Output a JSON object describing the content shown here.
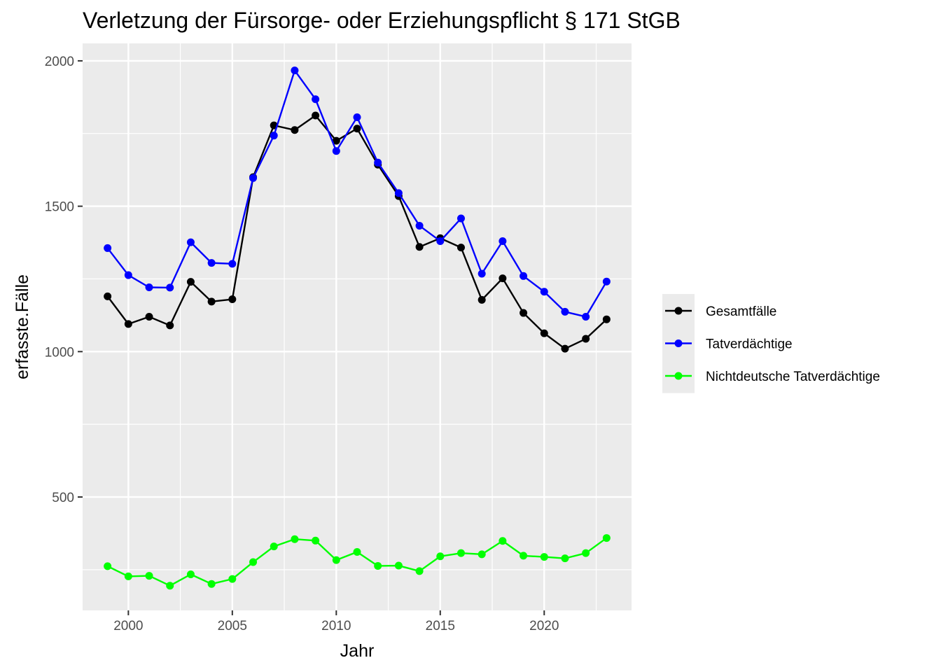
{
  "chart_data": {
    "type": "line",
    "title": "Verletzung der Fürsorge- oder Erziehungspflicht § 171 StGB",
    "xlabel": "Jahr",
    "ylabel": "erfasste.Fälle",
    "x": [
      1999,
      2000,
      2001,
      2002,
      2003,
      2004,
      2005,
      2006,
      2007,
      2008,
      2009,
      2010,
      2011,
      2012,
      2013,
      2014,
      2015,
      2016,
      2017,
      2018,
      2019,
      2020,
      2021,
      2022,
      2023
    ],
    "xlim": [
      1997.8,
      2024.2
    ],
    "ylim": [
      110,
      2060
    ],
    "x_ticks": [
      2000,
      2005,
      2010,
      2015,
      2020
    ],
    "y_ticks": [
      500,
      1000,
      1500,
      2000
    ],
    "grid": true,
    "legend_position": "right",
    "series": [
      {
        "name": "Gesamtfälle",
        "color": "#000000",
        "values": [
          1190,
          1095,
          1120,
          1090,
          1240,
          1172,
          1180,
          1600,
          1778,
          1762,
          1812,
          1725,
          1767,
          1643,
          1535,
          1360,
          1390,
          1358,
          1178,
          1252,
          1133,
          1063,
          1010,
          1044,
          1111
        ]
      },
      {
        "name": "Tatverdächtige",
        "color": "#0000ff",
        "values": [
          1356,
          1263,
          1221,
          1220,
          1376,
          1305,
          1302,
          1597,
          1743,
          1967,
          1868,
          1690,
          1806,
          1650,
          1545,
          1433,
          1380,
          1458,
          1268,
          1380,
          1260,
          1206,
          1137,
          1120,
          1241
        ]
      },
      {
        "name": "Nichtdeutsche Tatverdächtige",
        "color": "#00ff00",
        "values": [
          262,
          227,
          229,
          195,
          234,
          201,
          218,
          276,
          330,
          355,
          350,
          283,
          311,
          263,
          264,
          245,
          296,
          307,
          303,
          349,
          298,
          294,
          289,
          307,
          359
        ]
      }
    ]
  }
}
